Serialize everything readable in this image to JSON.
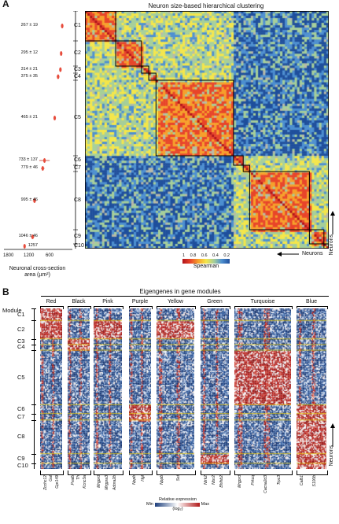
{
  "panelA": {
    "letter": "A",
    "title": "Neuron size-based hierarchical clustering",
    "clusters": [
      {
        "id": "C1",
        "mean": "267 ± 19",
        "value": 267,
        "err": 19
      },
      {
        "id": "C2",
        "mean": "295 ± 12",
        "value": 295,
        "err": 12
      },
      {
        "id": "C3",
        "mean": "314 ± 21",
        "value": 314,
        "err": 21
      },
      {
        "id": "C4",
        "mean": "375 ± 35",
        "value": 375,
        "err": 35
      },
      {
        "id": "C5",
        "mean": "465 ± 21",
        "value": 465,
        "err": 21
      },
      {
        "id": "C6",
        "mean": "733 ± 137",
        "value": 733,
        "err": 137
      },
      {
        "id": "C7",
        "mean": "779 ± 46",
        "value": 779,
        "err": 46
      },
      {
        "id": "C8",
        "mean": "995 ± 46",
        "value": 995,
        "err": 46
      },
      {
        "id": "C9",
        "mean": "1046 ± 46",
        "value": 1046,
        "err": 46
      },
      {
        "id": "C10",
        "mean": "1257",
        "value": 1257,
        "err": 0
      }
    ],
    "xticks": [
      "1800",
      "1200",
      "600"
    ],
    "xlabel_line1": "Neuronal cross-section",
    "xlabel_line2": "area (µm²)",
    "colorbar": {
      "ticks": [
        "1",
        "0.8",
        "0.6",
        "0.4",
        "0.2"
      ],
      "label": "Spearman",
      "colors": [
        "#b0121a",
        "#e8452a",
        "#f6a02c",
        "#f4e64a",
        "#a6cf9a",
        "#4d8fd0",
        "#1f4f9c"
      ]
    },
    "neurons_label": "Neurons",
    "neurons_label_right": "Neurons"
  },
  "panelB": {
    "letter": "B",
    "header": "Eigengenes in gene modules",
    "module_label": "Module",
    "rows": [
      "C1",
      "C2",
      "C3",
      "C4",
      "C5",
      "C6",
      "C7",
      "C8",
      "C9",
      "C10"
    ],
    "modules": [
      {
        "name": "Red",
        "genes": [
          "Zcchc12",
          "Gal",
          "Gpr149"
        ]
      },
      {
        "name": "Black",
        "genes": [
          "Pvalb",
          "Th",
          "Kcnc3a"
        ]
      },
      {
        "name": "Pink",
        "genes": [
          "Mrgprd",
          "Mrgpra3",
          "Adora2b"
        ]
      },
      {
        "name": "Purple",
        "genes": [
          "Nppb",
          "Hgf"
        ]
      },
      {
        "name": "Yellow",
        "genes": [
          "Nppb",
          "Sst"
        ]
      },
      {
        "name": "Green",
        "genes": [
          "Ntrk2",
          "Ntsr2",
          "Bhlhb2"
        ]
      },
      {
        "name": "Turquoise",
        "genes": [
          "Mrgprd",
          "Prkcq",
          "Cacna2d3",
          "Trpc3"
        ]
      },
      {
        "name": "Blue",
        "genes": [
          "Calb1",
          "S100b"
        ]
      }
    ],
    "legend_title": "Relative expression",
    "legend_min": "Min",
    "legend_max": "Max",
    "legend_unit": "(log₂)",
    "neurons_label": "Neurons"
  }
}
